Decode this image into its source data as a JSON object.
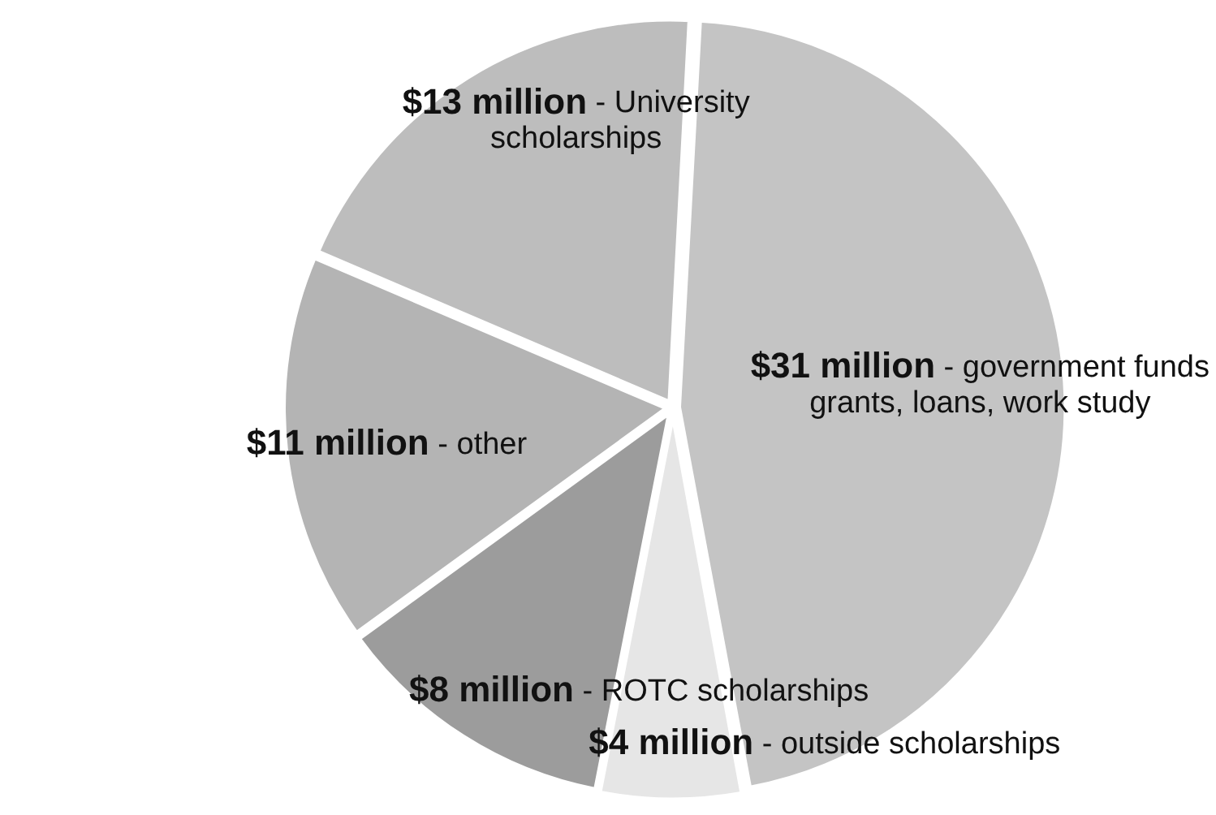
{
  "chart_data": {
    "type": "pie",
    "categories": [
      "- government funds grants, loans, work study",
      "- outside scholarships",
      "- ROTC scholarships",
      "- other",
      "- University scholarships"
    ],
    "values": [
      31,
      4,
      8,
      11,
      13
    ],
    "value_labels": [
      "$31 million",
      "$4 million",
      "$8 million",
      "$11 million",
      "$13 million"
    ],
    "colors": [
      "#c4c4c4",
      "#e6e6e6",
      "#9c9c9c",
      "#b4b4b4",
      "#bdbdbd"
    ],
    "legend": false
  }
}
